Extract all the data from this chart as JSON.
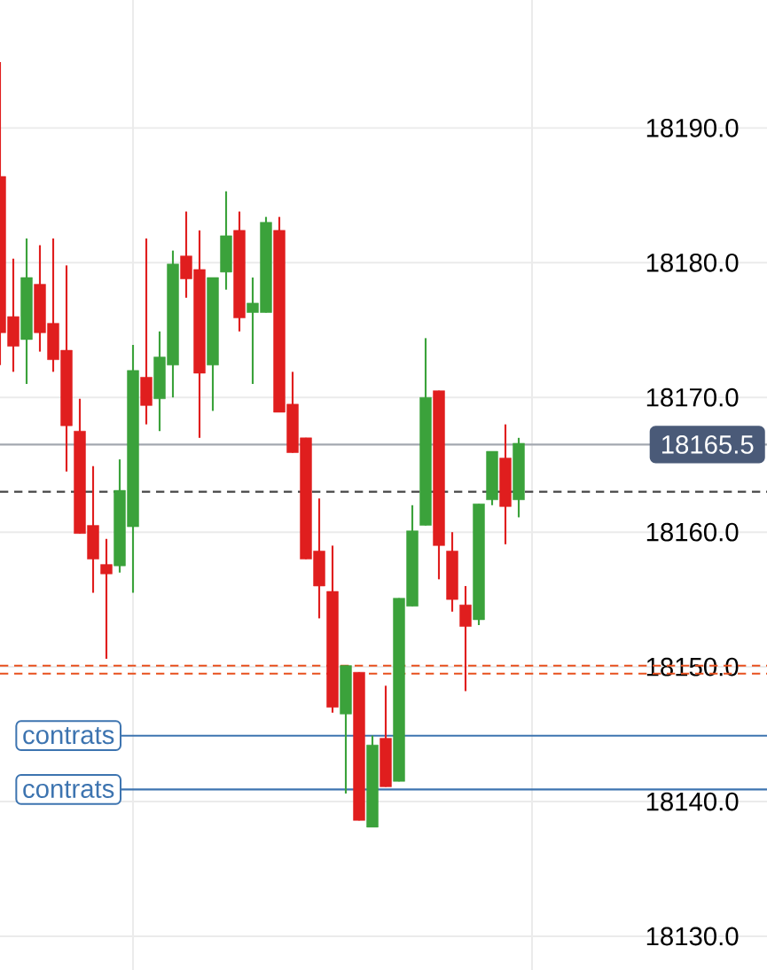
{
  "chart_data": {
    "type": "candlestick",
    "categories": [
      null,
      null,
      null,
      null,
      null,
      null,
      null,
      null,
      null,
      null,
      null,
      null,
      null,
      null,
      null,
      null,
      null,
      null,
      null,
      null,
      null,
      null,
      null,
      null,
      null,
      null,
      null,
      null,
      null,
      null,
      null,
      null,
      null,
      null,
      null,
      null,
      null,
      null,
      null,
      null
    ],
    "ohlc": [
      [
        18186.4,
        18194.9,
        18172.4,
        18174.8
      ],
      [
        18176.0,
        18180.3,
        18171.9,
        18173.8
      ],
      [
        18174.3,
        18181.8,
        18171.0,
        18178.9
      ],
      [
        18178.4,
        18181.3,
        18173.4,
        18174.8
      ],
      [
        18175.5,
        18181.8,
        18171.9,
        18172.8
      ],
      [
        18173.5,
        18179.8,
        18164.5,
        18167.9
      ],
      [
        18167.5,
        18169.9,
        18159.9,
        18159.9
      ],
      [
        18160.5,
        18164.9,
        18155.5,
        18158.0
      ],
      [
        18157.6,
        18159.5,
        18150.6,
        18156.9
      ],
      [
        18157.5,
        18165.4,
        18157.0,
        18163.1
      ],
      [
        18160.4,
        18173.9,
        18155.5,
        18172.0
      ],
      [
        18171.5,
        18181.8,
        18168.0,
        18169.4
      ],
      [
        18169.9,
        18174.9,
        18167.5,
        18173.0
      ],
      [
        18172.4,
        18180.9,
        18170.0,
        18179.9
      ],
      [
        18180.5,
        18183.8,
        18177.4,
        18178.8
      ],
      [
        18179.5,
        18182.4,
        18167.0,
        18171.8
      ],
      [
        18172.4,
        18178.9,
        18169.0,
        18178.9
      ],
      [
        18179.3,
        18185.3,
        18178.0,
        18182.0
      ],
      [
        18182.4,
        18183.8,
        18174.9,
        18175.9
      ],
      [
        18176.3,
        18178.9,
        18171.0,
        18177.0
      ],
      [
        18176.3,
        18183.4,
        18176.3,
        18183.0
      ],
      [
        18182.4,
        18183.4,
        18168.9,
        18168.9
      ],
      [
        18169.5,
        18171.9,
        18165.9,
        18165.9
      ],
      [
        18167.0,
        18167.0,
        18158.0,
        18158.0
      ],
      [
        18158.6,
        18162.5,
        18153.6,
        18156.0
      ],
      [
        18155.6,
        18159.0,
        18146.6,
        18147.0
      ],
      [
        18146.5,
        18150.1,
        18140.6,
        18150.1
      ],
      [
        18149.6,
        18149.6,
        18138.6,
        18138.6
      ],
      [
        18138.1,
        18144.9,
        18138.1,
        18144.2
      ],
      [
        18144.7,
        18148.6,
        18141.1,
        18141.1
      ],
      [
        18141.5,
        18155.1,
        18141.5,
        18155.1
      ],
      [
        18154.5,
        18162.0,
        18154.5,
        18160.1
      ],
      [
        18160.5,
        18174.4,
        18160.5,
        18170.0
      ],
      [
        18170.5,
        18170.5,
        18156.5,
        18159.0
      ],
      [
        18158.6,
        18160.0,
        18154.1,
        18155.0
      ],
      [
        18154.6,
        18156.0,
        18148.2,
        18153.0
      ],
      [
        18153.5,
        18162.1,
        18153.1,
        18162.1
      ],
      [
        18162.4,
        18166.0,
        18162.0,
        18166.0
      ],
      [
        18165.5,
        18168.0,
        18159.1,
        18161.9
      ],
      [
        18162.4,
        18167.0,
        18161.1,
        18166.6
      ]
    ],
    "colors": [
      "#e01e1e",
      "#e01e1e",
      "#3ba23b",
      "#e01e1e",
      "#e01e1e",
      "#e01e1e",
      "#e01e1e",
      "#e01e1e",
      "#e01e1e",
      "#3ba23b",
      "#3ba23b",
      "#e01e1e",
      "#3ba23b",
      "#3ba23b",
      "#e01e1e",
      "#e01e1e",
      "#3ba23b",
      "#3ba23b",
      "#e01e1e",
      "#3ba23b",
      "#3ba23b",
      "#e01e1e",
      "#e01e1e",
      "#e01e1e",
      "#e01e1e",
      "#e01e1e",
      "#3ba23b",
      "#e01e1e",
      "#3ba23b",
      "#e01e1e",
      "#3ba23b",
      "#3ba23b",
      "#3ba23b",
      "#e01e1e",
      "#e01e1e",
      "#e01e1e",
      "#3ba23b",
      "#3ba23b",
      "#e01e1e",
      "#3ba23b"
    ],
    "ylim": [
      18127.5,
      18199.5
    ],
    "yticks": [
      {
        "value": 18130,
        "label": "18130.0"
      },
      {
        "value": 18140,
        "label": "18140.0"
      },
      {
        "value": 18150,
        "label": "18150.0"
      },
      {
        "value": 18160,
        "label": "18160.0"
      },
      {
        "value": 18170,
        "label": "18170.0"
      },
      {
        "value": 18180,
        "label": "18180.0"
      },
      {
        "value": 18190,
        "label": "18190.0"
      }
    ],
    "grid": "y",
    "ref_lines": [
      {
        "axis": "y",
        "value": 18166.5,
        "color": "#a3a8b0",
        "line_style": "solid"
      },
      {
        "axis": "y",
        "value": 18163.0,
        "color": "#444444",
        "line_style": "dashed"
      },
      {
        "axis": "y",
        "value": 18150.1,
        "color": "#e8501e",
        "line_style": "dashed"
      },
      {
        "axis": "y",
        "value": 18149.5,
        "color": "#e8501e",
        "line_style": "dashed"
      },
      {
        "axis": "y",
        "value": 18144.9,
        "color": "#3d74b0",
        "line_style": "solid",
        "label": "contrats"
      },
      {
        "axis": "y",
        "value": 18140.9,
        "color": "#3d74b0",
        "line_style": "solid",
        "label": "contrats"
      }
    ],
    "annotations": [
      {
        "text": "18165.5",
        "y": 18166.5
      }
    ]
  }
}
